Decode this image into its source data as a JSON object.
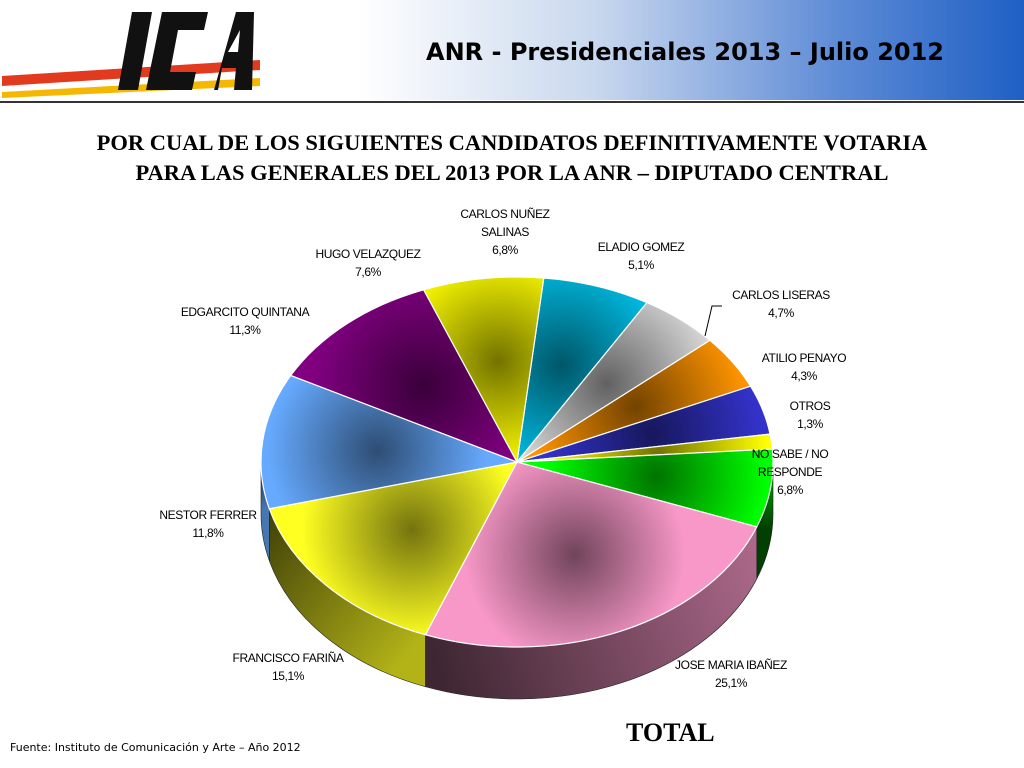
{
  "header": {
    "title": "ANR - Presidenciales 2013 – Julio 2012"
  },
  "question": [
    "POR CUAL DE LOS SIGUIENTES CANDIDATOS DEFINITIVAMENTE VOTARIA",
    "PARA LAS GENERALES DEL 2013 POR LA ANR – DIPUTADO CENTRAL"
  ],
  "chart_data": {
    "type": "pie",
    "title": "",
    "subtitle": "TOTAL",
    "slices": [
      {
        "label": "CARLOS NUÑEZ SALINAS",
        "value": 6.8,
        "display": "6,8%",
        "color": "#00c0e8"
      },
      {
        "label": "ELADIO GOMEZ",
        "value": 5.1,
        "display": "5,1%",
        "color": "#d8d8d8"
      },
      {
        "label": "CARLOS LISERAS",
        "value": 4.7,
        "display": "4,7%",
        "color": "#ff9400"
      },
      {
        "label": "ATILIO PENAYO",
        "value": 4.3,
        "display": "4,3%",
        "color": "#3333cc"
      },
      {
        "label": "OTROS",
        "value": 1.3,
        "display": "1,3%",
        "color": "#ffff00"
      },
      {
        "label": "NO SABE / NO RESPONDE",
        "value": 6.8,
        "display": "6,8%",
        "color": "#00ff00"
      },
      {
        "label": "JOSE MARIA IBAÑEZ",
        "value": 25.1,
        "display": "25,1%",
        "color": "#f898c8"
      },
      {
        "label": "FRANCISCO FARIÑA",
        "value": 15.1,
        "display": "15,1%",
        "color": "#ffff22"
      },
      {
        "label": "NESTOR FERRER",
        "value": 11.8,
        "display": "11,8%",
        "color": "#66aaff"
      },
      {
        "label": "EDGARCITO QUINTANA",
        "value": 11.3,
        "display": "11,3%",
        "color": "#800080"
      },
      {
        "label": "HUGO VELAZQUEZ",
        "value": 7.6,
        "display": "7,6%",
        "color": "#ffff00"
      }
    ]
  },
  "total_label": "TOTAL",
  "source": "Fuente: Instituto de Comunicación y Arte – Año 2012"
}
